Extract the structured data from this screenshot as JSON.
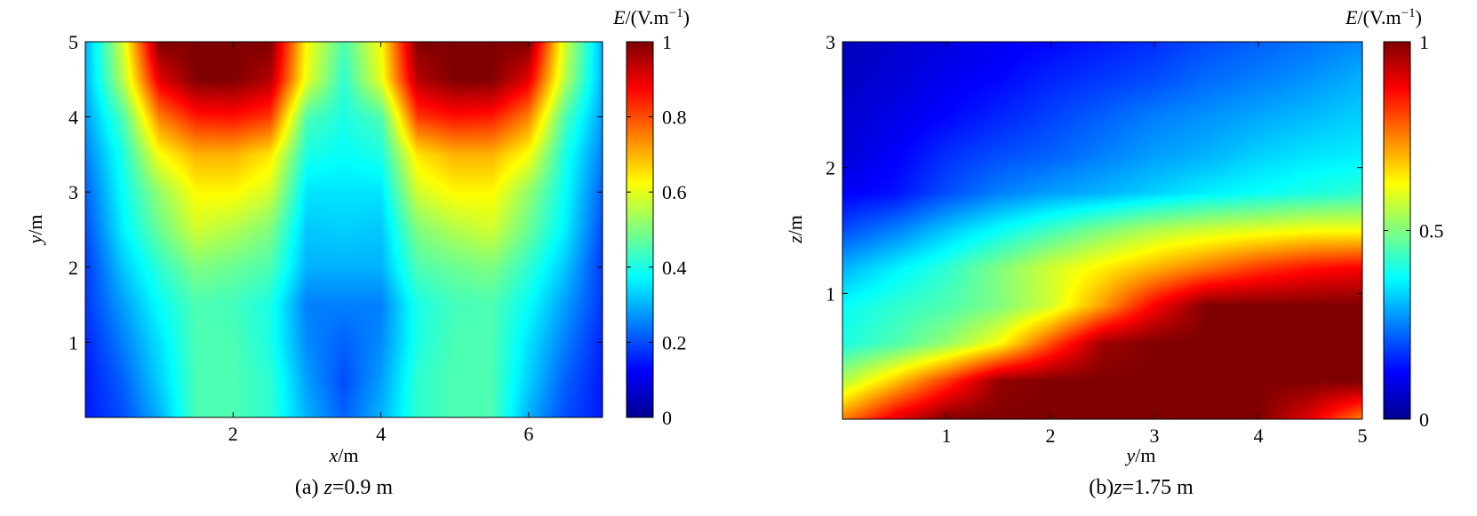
{
  "colormap": "jet",
  "colormap_stops": [
    "#00008f",
    "#0000ff",
    "#00ffff",
    "#ffff00",
    "#ff0000",
    "#800000"
  ],
  "chart_data": [
    {
      "type": "heatmap",
      "panel": "a",
      "caption_prefix": "(a) ",
      "caption_var": "z",
      "caption_value": "=0.9 m",
      "xlabel_var": "x",
      "xlabel_unit": "/m",
      "ylabel_var": "y",
      "ylabel_unit": "/m",
      "xlim": [
        0,
        7
      ],
      "ylim": [
        0,
        5
      ],
      "xticks": [
        2,
        4,
        6
      ],
      "yticks": [
        1,
        2,
        3,
        4,
        5
      ],
      "colorbar_title_var": "E",
      "colorbar_title_unit": "/(V.m",
      "colorbar_title_exp": "−1",
      "colorbar_title_close": ")",
      "clim": [
        0,
        1
      ],
      "colorbar_ticks": [
        0,
        0.2,
        0.4,
        0.6,
        0.8,
        1
      ],
      "colorbar_tick_labels": [
        "0",
        "0.2",
        "0.4",
        "0.6",
        "0.8",
        "1"
      ],
      "x": [
        0,
        0.5,
        1,
        1.5,
        2,
        2.5,
        3,
        3.5,
        4,
        4.5,
        5,
        5.5,
        6,
        6.5,
        7
      ],
      "y": [
        0,
        0.5,
        1,
        1.5,
        2,
        2.5,
        3,
        3.5,
        4,
        4.5,
        5
      ],
      "z": [
        [
          0.15,
          0.2,
          0.3,
          0.45,
          0.45,
          0.42,
          0.3,
          0.22,
          0.3,
          0.42,
          0.45,
          0.45,
          0.3,
          0.2,
          0.15
        ],
        [
          0.15,
          0.22,
          0.33,
          0.45,
          0.45,
          0.42,
          0.28,
          0.2,
          0.28,
          0.42,
          0.45,
          0.45,
          0.33,
          0.22,
          0.15
        ],
        [
          0.16,
          0.25,
          0.35,
          0.45,
          0.45,
          0.4,
          0.26,
          0.22,
          0.26,
          0.4,
          0.45,
          0.45,
          0.35,
          0.25,
          0.16
        ],
        [
          0.18,
          0.28,
          0.38,
          0.45,
          0.44,
          0.4,
          0.25,
          0.25,
          0.25,
          0.4,
          0.44,
          0.45,
          0.38,
          0.28,
          0.18
        ],
        [
          0.18,
          0.32,
          0.42,
          0.5,
          0.48,
          0.45,
          0.3,
          0.3,
          0.3,
          0.45,
          0.48,
          0.5,
          0.42,
          0.32,
          0.18
        ],
        [
          0.2,
          0.36,
          0.48,
          0.58,
          0.55,
          0.5,
          0.32,
          0.33,
          0.32,
          0.5,
          0.55,
          0.58,
          0.48,
          0.36,
          0.2
        ],
        [
          0.22,
          0.38,
          0.52,
          0.63,
          0.63,
          0.58,
          0.35,
          0.35,
          0.35,
          0.58,
          0.63,
          0.63,
          0.52,
          0.38,
          0.22
        ],
        [
          0.25,
          0.4,
          0.62,
          0.7,
          0.7,
          0.65,
          0.4,
          0.38,
          0.4,
          0.65,
          0.7,
          0.7,
          0.62,
          0.4,
          0.25
        ],
        [
          0.28,
          0.45,
          0.75,
          0.85,
          0.86,
          0.82,
          0.45,
          0.4,
          0.45,
          0.82,
          0.86,
          0.85,
          0.75,
          0.45,
          0.28
        ],
        [
          0.3,
          0.55,
          0.9,
          1,
          1,
          0.95,
          0.6,
          0.42,
          0.6,
          0.95,
          1,
          1,
          0.9,
          0.55,
          0.3
        ],
        [
          0.3,
          0.58,
          1,
          1,
          1,
          1,
          0.62,
          0.45,
          0.62,
          1,
          1,
          1,
          1,
          0.58,
          0.3
        ]
      ]
    },
    {
      "type": "heatmap",
      "panel": "b",
      "caption_prefix": "(b)",
      "caption_var": "z",
      "caption_value": "=1.75 m",
      "xlabel_var": "y",
      "xlabel_unit": "/m",
      "ylabel_var": "z",
      "ylabel_unit": "/m",
      "xlim": [
        0,
        5
      ],
      "ylim": [
        0,
        3
      ],
      "xticks": [
        1,
        2,
        3,
        4,
        5
      ],
      "yticks": [
        1,
        2,
        3
      ],
      "colorbar_title_var": "E",
      "colorbar_title_unit": "/(V.m",
      "colorbar_title_exp": "−1",
      "colorbar_title_close": ")",
      "clim": [
        0,
        1
      ],
      "colorbar_ticks": [
        0,
        0.5,
        1
      ],
      "colorbar_tick_labels": [
        "0",
        "0.5",
        "1"
      ],
      "x": [
        0,
        0.5,
        1,
        1.5,
        2,
        2.5,
        3,
        3.5,
        4,
        4.5,
        5
      ],
      "y": [
        0,
        0.3,
        0.6,
        0.9,
        1.2,
        1.5,
        1.8,
        2.1,
        2.4,
        2.7,
        3
      ],
      "z": [
        [
          0.75,
          0.9,
          1,
          1,
          1,
          1,
          1,
          1,
          1,
          0.9,
          0.75
        ],
        [
          0.55,
          0.68,
          0.82,
          0.98,
          1,
          1,
          1,
          1,
          1,
          1,
          1
        ],
        [
          0.4,
          0.45,
          0.52,
          0.62,
          0.8,
          0.97,
          1,
          1,
          1,
          1,
          1
        ],
        [
          0.38,
          0.42,
          0.45,
          0.5,
          0.58,
          0.72,
          0.88,
          1,
          1,
          1,
          1
        ],
        [
          0.3,
          0.36,
          0.42,
          0.5,
          0.58,
          0.64,
          0.7,
          0.76,
          0.82,
          0.86,
          0.88
        ],
        [
          0.2,
          0.25,
          0.32,
          0.38,
          0.44,
          0.5,
          0.55,
          0.58,
          0.6,
          0.62,
          0.62
        ],
        [
          0.12,
          0.14,
          0.2,
          0.25,
          0.28,
          0.3,
          0.33,
          0.36,
          0.38,
          0.4,
          0.42
        ],
        [
          0.08,
          0.12,
          0.17,
          0.2,
          0.22,
          0.25,
          0.28,
          0.3,
          0.33,
          0.35,
          0.36
        ],
        [
          0.07,
          0.1,
          0.13,
          0.16,
          0.19,
          0.22,
          0.25,
          0.27,
          0.29,
          0.31,
          0.33
        ],
        [
          0.06,
          0.08,
          0.11,
          0.13,
          0.16,
          0.18,
          0.2,
          0.23,
          0.25,
          0.27,
          0.3
        ],
        [
          0.05,
          0.07,
          0.09,
          0.11,
          0.13,
          0.15,
          0.17,
          0.2,
          0.22,
          0.24,
          0.26
        ]
      ]
    }
  ]
}
